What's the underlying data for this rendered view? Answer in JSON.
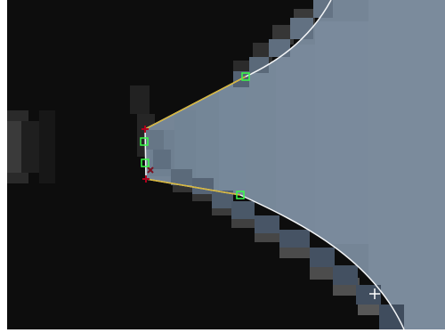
{
  "editor": {
    "mode": "bezier-path-editing",
    "zoom_level": "pixel-zoom"
  },
  "colors": {
    "background_dark": "#0b0b0b",
    "pixel_light": "#758596",
    "path_curve": "#f4f6f8",
    "handle_line": "#d8b637",
    "handle_point": "#39ff49",
    "anchor_point": "#b1001d",
    "crosshair_marker": "#ffffff"
  },
  "icons": {
    "anchor": "red-cross-anchor-icon",
    "handle": "green-square-handle-icon",
    "cursor": "white-crosshair-cursor-icon"
  }
}
